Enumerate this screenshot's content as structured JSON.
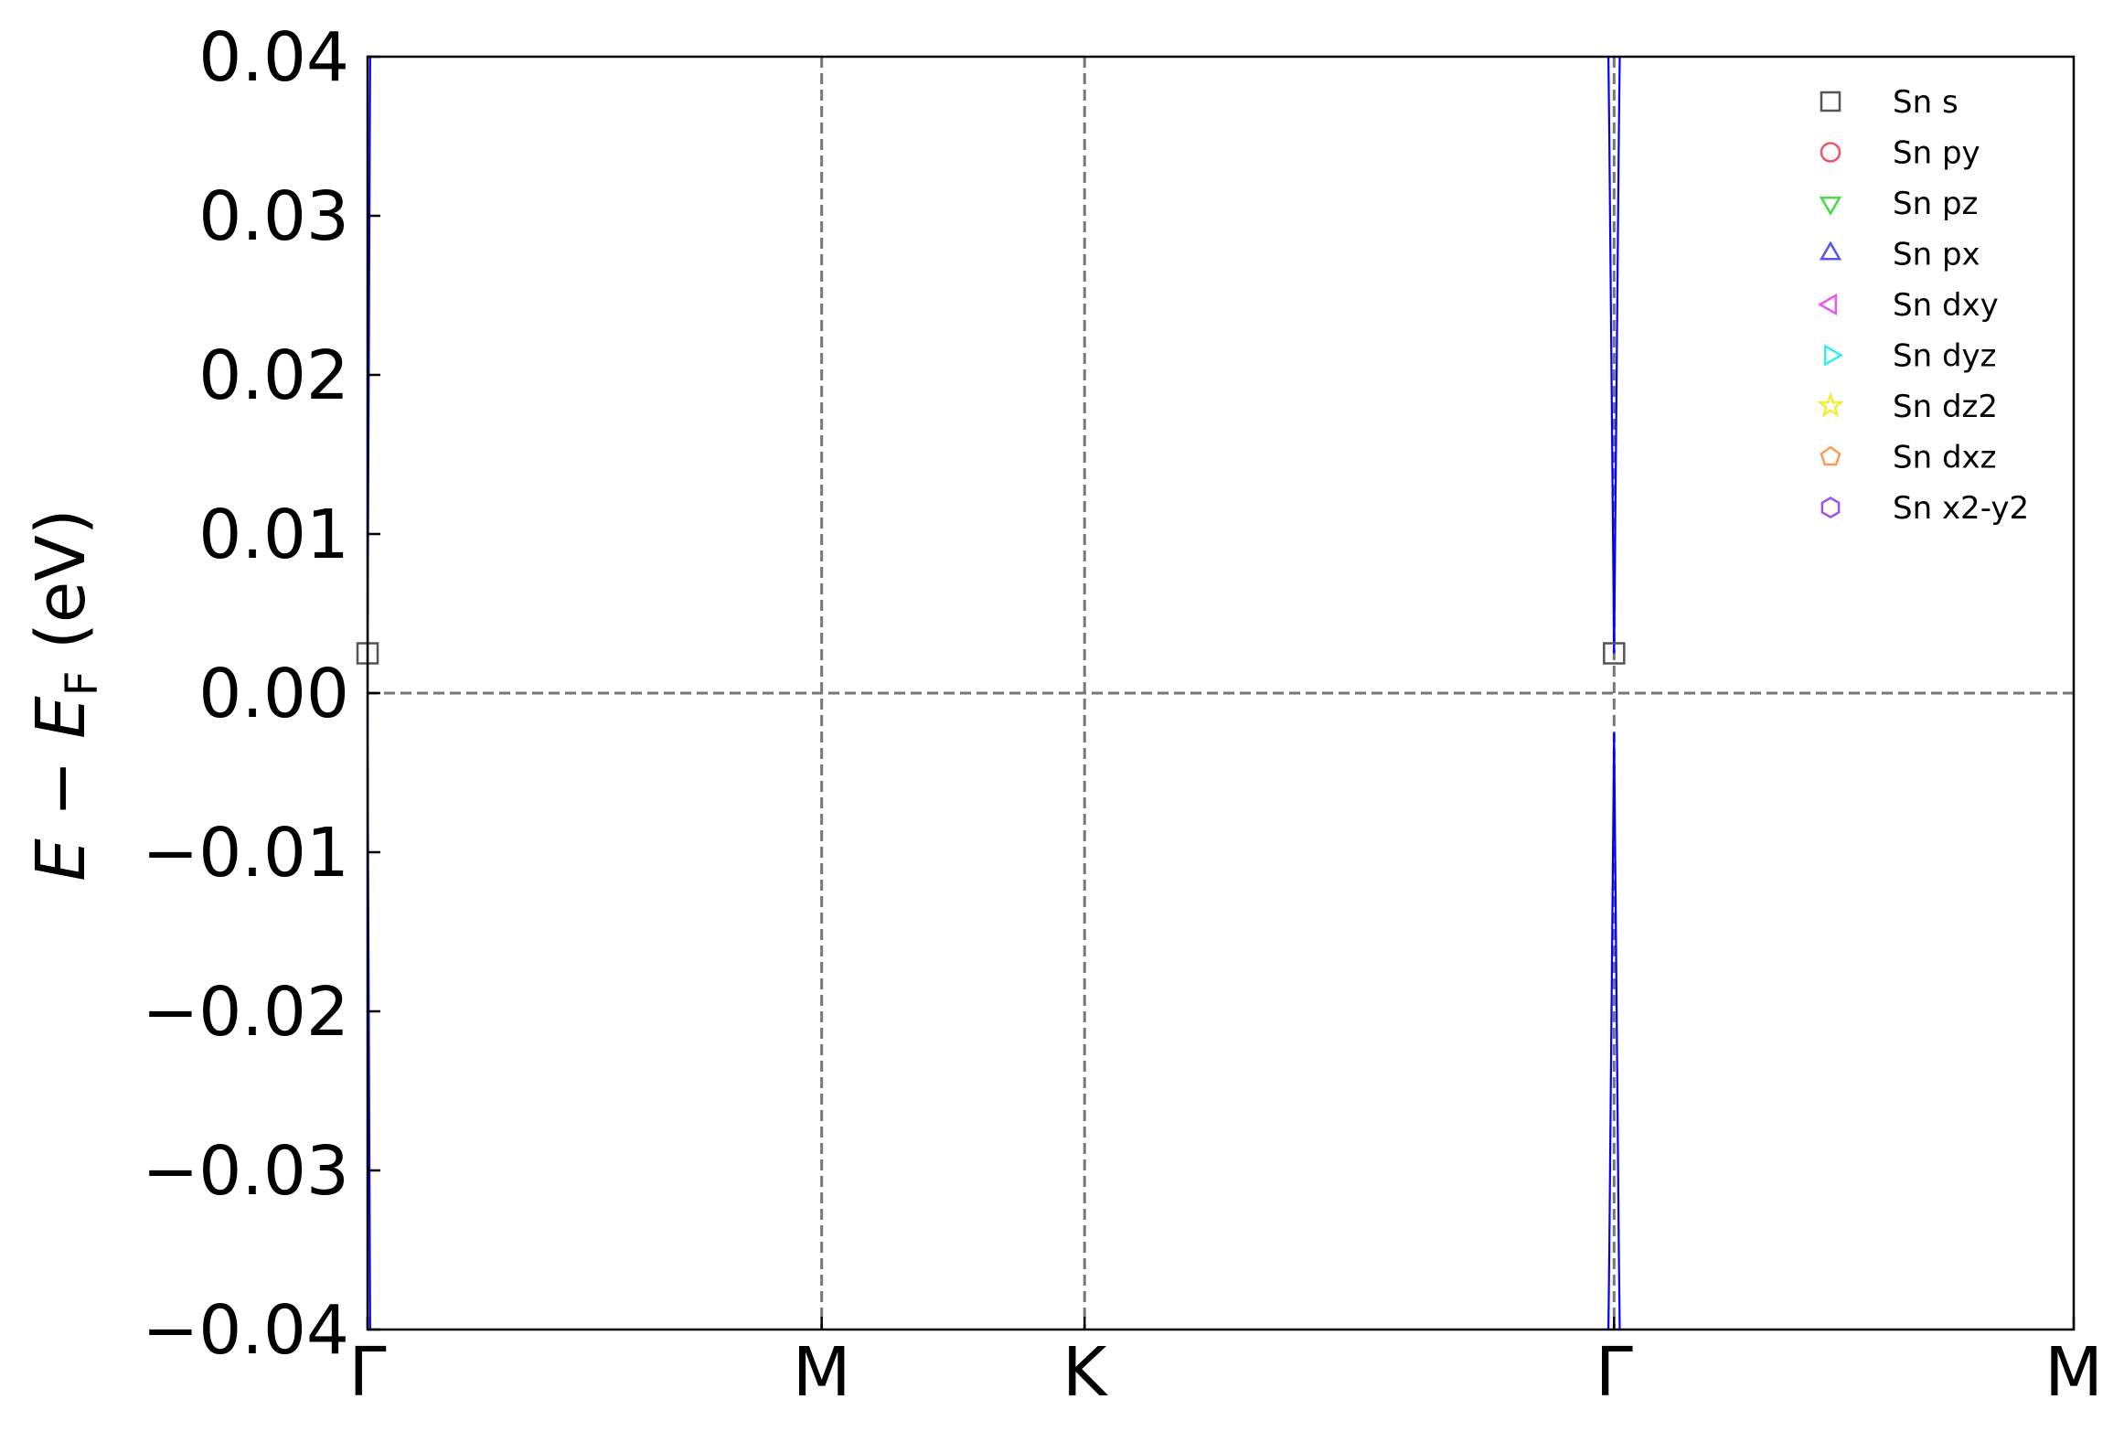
{
  "chart_data": {
    "type": "line",
    "title": "",
    "xlabel": "",
    "ylabel": {
      "parts": [
        {
          "text": "E",
          "style": "italic"
        },
        {
          "text": "F",
          "style": "subscript"
        },
        {
          "text": "−",
          "style": "normal"
        },
        {
          "text": "(eV)",
          "style": "normal"
        }
      ]
    },
    "ylim": [
      -0.04,
      0.04
    ],
    "yticks": [
      0.04,
      0.03,
      0.02,
      0.01,
      0.0,
      -0.01,
      -0.02,
      -0.03,
      -0.04
    ],
    "ytick_labels": [
      "0.04",
      "0.03",
      "0.02",
      "0.01",
      "0.00",
      "−0.01",
      "−0.02",
      "−0.03",
      "−0.04"
    ],
    "kpath": {
      "xlim": [
        0,
        4.64
      ],
      "points": [
        {
          "label": "Γ",
          "x": 0.0
        },
        {
          "label": "M",
          "x": 1.235
        },
        {
          "label": "K",
          "x": 1.95
        },
        {
          "label": "Γ",
          "x": 3.39
        },
        {
          "label": "M",
          "x": 4.64
        }
      ]
    },
    "fermi_level": 0.0,
    "grid": false,
    "band_color": "#0000ff",
    "bands": [
      {
        "x": [
          0.0,
          0.001,
          0.004,
          0.008
        ],
        "y": [
          0.0,
          0.008,
          0.024,
          0.045
        ]
      },
      {
        "x": [
          0.0,
          0.001,
          0.004,
          0.008
        ],
        "y": [
          0.0,
          -0.008,
          -0.024,
          -0.045
        ]
      },
      {
        "x": [
          3.39,
          3.393,
          3.397,
          3.403,
          3.408
        ],
        "y": [
          -0.0025,
          -0.01,
          -0.02,
          -0.035,
          -0.045
        ]
      },
      {
        "x": [
          3.39,
          3.387,
          3.383,
          3.377,
          3.372
        ],
        "y": [
          -0.0025,
          -0.01,
          -0.02,
          -0.035,
          -0.045
        ]
      },
      {
        "x": [
          3.39,
          3.393,
          3.397,
          3.403,
          3.408
        ],
        "y": [
          0.0025,
          0.01,
          0.02,
          0.035,
          0.045
        ]
      },
      {
        "x": [
          3.39,
          3.387,
          3.383,
          3.377,
          3.372
        ],
        "y": [
          0.0025,
          0.01,
          0.02,
          0.035,
          0.045
        ]
      }
    ],
    "markers": [
      {
        "series": "Sn s",
        "x": 0.0,
        "y": 0.0025
      },
      {
        "series": "Sn s",
        "x": 3.39,
        "y": 0.0025
      }
    ],
    "legend": {
      "placement": "top-right",
      "entries": [
        {
          "name": "Sn s",
          "marker": "square",
          "color": "#555555"
        },
        {
          "name": "Sn py",
          "marker": "circle",
          "color": "#ee5566"
        },
        {
          "name": "Sn pz",
          "marker": "triangle-down",
          "color": "#44dd44"
        },
        {
          "name": "Sn px",
          "marker": "triangle-up",
          "color": "#5555ee"
        },
        {
          "name": "Sn dxy",
          "marker": "triangle-left",
          "color": "#ee55ee"
        },
        {
          "name": "Sn dyz",
          "marker": "triangle-right",
          "color": "#33eeee"
        },
        {
          "name": "Sn dz2",
          "marker": "star",
          "color": "#eeee33"
        },
        {
          "name": "Sn dxz",
          "marker": "pentagon",
          "color": "#ff9955"
        },
        {
          "name": "Sn x2-y2",
          "marker": "hexagon",
          "color": "#9955ee"
        }
      ]
    }
  }
}
